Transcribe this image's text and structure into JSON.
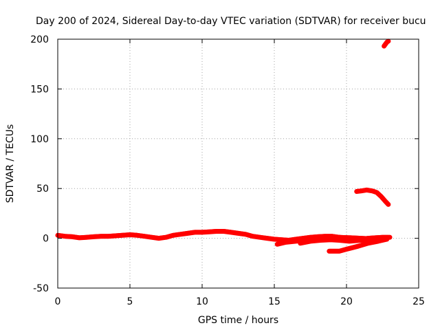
{
  "chart_data": {
    "type": "line",
    "title": "Day 200 of 2024, Sidereal Day-to-day VTEC variation (SDTVAR) for receiver bucu",
    "xlabel": "GPS time / hours",
    "ylabel": "SDTVAR / TECUs",
    "xlim": [
      0,
      25
    ],
    "ylim": [
      -50,
      200
    ],
    "xticks": [
      0,
      5,
      10,
      15,
      20,
      25
    ],
    "yticks": [
      -50,
      0,
      50,
      100,
      150,
      200
    ],
    "grid": true,
    "colors": {
      "series": "#ff0000",
      "grid": "#a0a0a0",
      "axis": "#000000",
      "background": "#ffffff"
    },
    "series": [
      {
        "name": "main-trace",
        "points": [
          [
            0.0,
            3
          ],
          [
            0.5,
            2
          ],
          [
            1,
            1.5
          ],
          [
            1.5,
            0.5
          ],
          [
            2,
            1
          ],
          [
            2.5,
            1.5
          ],
          [
            3,
            2
          ],
          [
            3.5,
            2
          ],
          [
            4,
            2.5
          ],
          [
            4.5,
            3
          ],
          [
            5,
            3.5
          ],
          [
            5.5,
            3
          ],
          [
            6,
            2
          ],
          [
            6.5,
            1
          ],
          [
            7,
            0
          ],
          [
            7.5,
            1
          ],
          [
            8,
            3
          ],
          [
            8.5,
            4
          ],
          [
            9,
            5
          ],
          [
            9.5,
            6
          ],
          [
            10,
            6
          ],
          [
            10.5,
            6.5
          ],
          [
            11,
            7
          ],
          [
            11.5,
            7
          ],
          [
            12,
            6
          ],
          [
            12.5,
            5
          ],
          [
            13,
            4
          ],
          [
            13.5,
            2
          ],
          [
            14,
            1
          ],
          [
            14.5,
            0
          ],
          [
            15,
            -1
          ],
          [
            15.5,
            -1.5
          ],
          [
            16,
            -2
          ],
          [
            16.5,
            -1
          ],
          [
            17,
            0
          ],
          [
            17.5,
            1
          ],
          [
            18,
            1.5
          ],
          [
            18.5,
            2
          ],
          [
            19,
            2
          ],
          [
            19.5,
            1
          ],
          [
            20,
            0
          ],
          [
            20.5,
            0
          ],
          [
            21,
            -1
          ],
          [
            21.5,
            0
          ],
          [
            22,
            0.5
          ],
          [
            22.5,
            1
          ],
          [
            22.9,
            1
          ]
        ]
      },
      {
        "name": "lower-branch-a",
        "points": [
          [
            15.2,
            -6
          ],
          [
            15.8,
            -4
          ],
          [
            16.5,
            -3
          ],
          [
            17.3,
            -1.5
          ],
          [
            18.0,
            -0.5
          ],
          [
            18.8,
            0.5
          ],
          [
            19.5,
            1
          ],
          [
            20.3,
            0.5
          ],
          [
            21.0,
            0
          ],
          [
            21.6,
            -0.5
          ]
        ]
      },
      {
        "name": "lower-branch-b",
        "points": [
          [
            16.8,
            -5
          ],
          [
            17.5,
            -3
          ],
          [
            18.2,
            -2
          ],
          [
            18.9,
            -1.5
          ],
          [
            19.5,
            -2
          ],
          [
            20.2,
            -3
          ],
          [
            21.0,
            -2
          ],
          [
            21.8,
            -1
          ],
          [
            22.5,
            0
          ],
          [
            23.0,
            1
          ]
        ]
      },
      {
        "name": "dip-branch",
        "points": [
          [
            18.8,
            -13
          ],
          [
            19.5,
            -13
          ],
          [
            20.0,
            -11
          ],
          [
            20.8,
            -8
          ],
          [
            21.5,
            -5
          ],
          [
            22.2,
            -3
          ],
          [
            22.8,
            -1
          ]
        ]
      },
      {
        "name": "upper-segment",
        "points": [
          [
            20.7,
            47
          ],
          [
            21.0,
            47.5
          ],
          [
            21.4,
            48.5
          ],
          [
            21.8,
            47.5
          ],
          [
            22.1,
            46
          ],
          [
            22.4,
            42
          ],
          [
            22.7,
            37
          ],
          [
            22.9,
            34
          ]
        ]
      },
      {
        "name": "top-segment",
        "points": [
          [
            22.6,
            193
          ],
          [
            22.7,
            195
          ],
          [
            22.8,
            197
          ],
          [
            22.9,
            198
          ]
        ]
      }
    ]
  }
}
